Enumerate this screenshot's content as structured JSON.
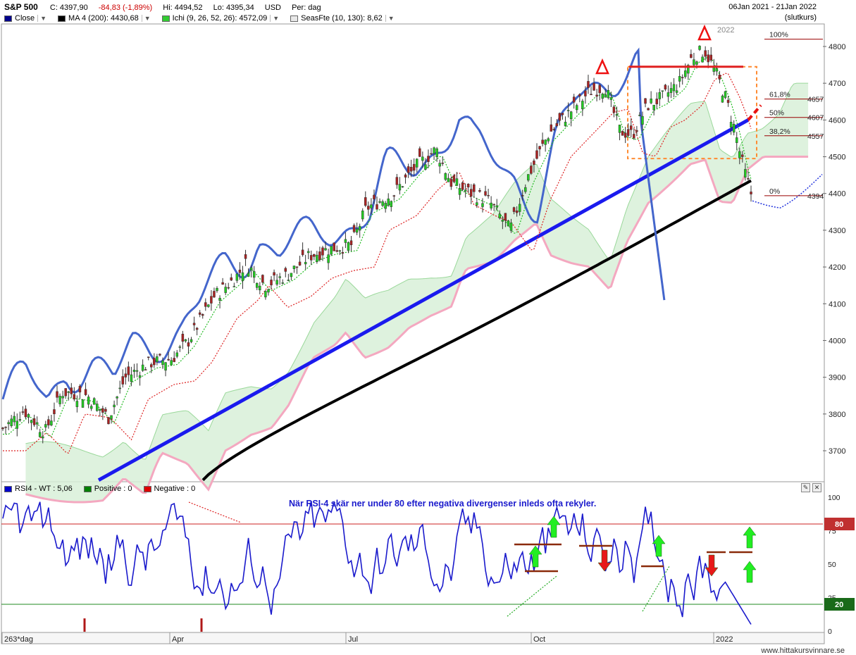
{
  "header": {
    "symbol": "S&P 500",
    "close": "C: 4397,90",
    "change": "-84,83 (-1,89%)",
    "high": "Hi: 4494,52",
    "low": "Lo: 4395,34",
    "currency": "USD",
    "period": "Per: dag",
    "date_range": "06Jan 2021 - 21Jan 2022",
    "price_type": "(slutkurs)"
  },
  "legend": [
    {
      "label": "Close",
      "color": "#00008b"
    },
    {
      "label": "MA 4 (200): 4430,68",
      "color": "#000000"
    },
    {
      "label": "Ichi (9, 26, 52, 26): 4572,09",
      "color": "#33cc33"
    },
    {
      "label": "SeasFte (10, 130): 8,62",
      "color": "#e8e8e8"
    }
  ],
  "lower_legend": [
    {
      "label": "RSI4 - WT : 5,06",
      "color": "#0000cc"
    },
    {
      "label": "Positive : 0",
      "color": "#008000"
    },
    {
      "label": "Negative : 0",
      "color": "#dd0000"
    }
  ],
  "colors": {
    "up": "#22cc22",
    "down": "#aa2222",
    "trend": "#1a1aee",
    "ma": "#000000",
    "rsi": "#1a1acc",
    "season": "#4466cc",
    "cloud": "#d8f0d8",
    "cloud_edge": "#f4a8c0",
    "fib": "#990000",
    "box": "#ff8c33"
  },
  "chart_data": [
    {
      "type": "candlestick",
      "title": "S&P 500",
      "y_ticks": [
        3700,
        3800,
        3900,
        4000,
        4100,
        4200,
        4300,
        4400,
        4500,
        4600,
        4700,
        4800
      ],
      "ylim": [
        3620,
        4840
      ],
      "x_ticks": [
        "Apr",
        "Jul",
        "Oct",
        "2022"
      ],
      "annotations": {
        "year_label": "2022",
        "fib_levels": [
          {
            "label": "100%",
            "value": 4820
          },
          {
            "label": "61,8%",
            "value": 4657
          },
          {
            "label": "50%",
            "value": 4607
          },
          {
            "label": "38,2%",
            "value": 4557
          },
          {
            "label": "0%",
            "value": 4394
          }
        ]
      },
      "series": [
        {
          "name": "Close",
          "type": "candles"
        },
        {
          "name": "MA 4 (200)"
        },
        {
          "name": "Ichi (9, 26, 52, 26)"
        },
        {
          "name": "SeasFte (10, 130)"
        }
      ]
    },
    {
      "type": "line",
      "title": "RSI4 - WT : 5,06",
      "y_ticks": [
        0,
        25,
        50,
        75,
        100
      ],
      "ylim": [
        0,
        100
      ],
      "levels": [
        80,
        20
      ],
      "annotation": "När RSI-4 skär ner under 80 efter negativa divergenser inleds ofta rekyler.",
      "x_label": "263*dag"
    }
  ],
  "footer": "www.hittakursvinnare.se"
}
